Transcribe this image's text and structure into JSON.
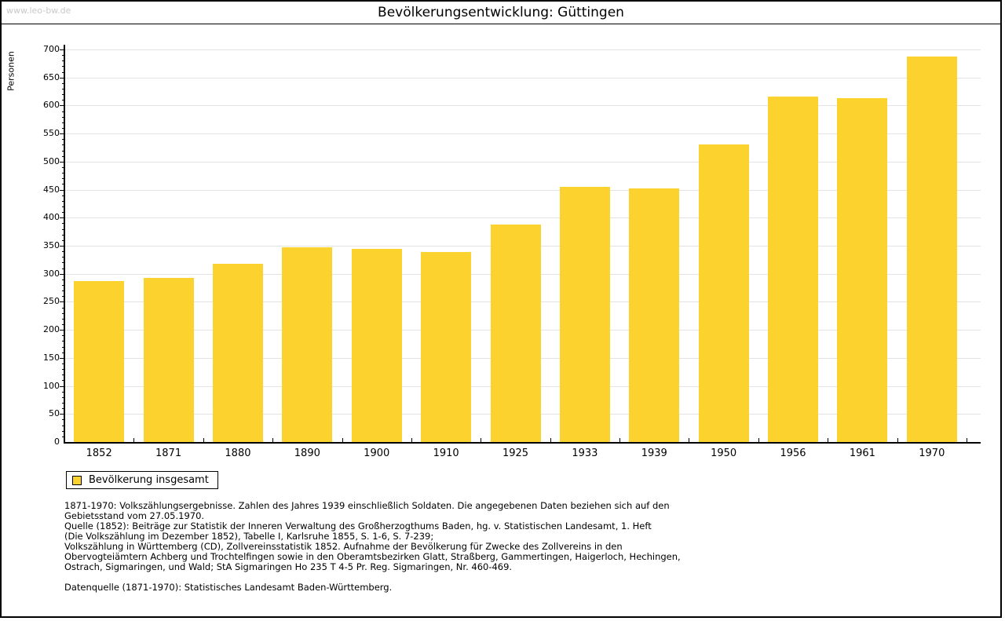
{
  "header": {
    "watermark": "www.leo-bw.de",
    "title": "Bevölkerungsentwicklung: Güttingen"
  },
  "chart_data": {
    "type": "bar",
    "title": "Bevölkerungsentwicklung: Güttingen",
    "ylabel": "Personen",
    "xlabel": "",
    "categories": [
      "1852",
      "1871",
      "1880",
      "1890",
      "1900",
      "1910",
      "1925",
      "1933",
      "1939",
      "1950",
      "1956",
      "1961",
      "1970"
    ],
    "values": [
      287,
      293,
      318,
      347,
      345,
      339,
      388,
      455,
      452,
      531,
      616,
      613,
      688
    ],
    "ylim": [
      0,
      700
    ],
    "ytick_major": 50,
    "ytick_minor": 10,
    "grid": true,
    "legend_position": "bottom-left",
    "series_name": "Bevölkerung insgesamt"
  },
  "legend": {
    "label": "Bevölkerung insgesamt"
  },
  "colors": {
    "bar": "#fcd32e",
    "grid": "#e3e3e3",
    "axis": "#000000",
    "watermark": "#c9c9c9"
  },
  "footnotes": {
    "lines": [
      "1871-1970: Volkszählungsergebnisse. Zahlen des Jahres 1939 einschließlich Soldaten. Die angegebenen Daten beziehen sich auf den",
      "Gebietsstand vom 27.05.1970.",
      "Quelle (1852): Beiträge zur Statistik der Inneren Verwaltung des Großherzogthums Baden, hg. v. Statistischen Landesamt, 1. Heft",
      "(Die Volkszählung im Dezember 1852), Tabelle I, Karlsruhe 1855, S. 1-6, S. 7-239;",
      "Volkszählung in Württemberg (CD), Zollvereinsstatistik 1852. Aufnahme der Bevölkerung für Zwecke des Zollvereins in den",
      "Obervogteiämtern Achberg und Trochtelfingen sowie in den Oberamtsbezirken Glatt, Straßberg, Gammertingen, Haigerloch, Hechingen,",
      "Ostrach, Sigmaringen, und Wald; StA Sigmaringen Ho 235 T 4-5 Pr. Reg. Sigmaringen, Nr. 460-469."
    ],
    "datasource": "Datenquelle (1871-1970): Statistisches Landesamt Baden-Württemberg."
  }
}
